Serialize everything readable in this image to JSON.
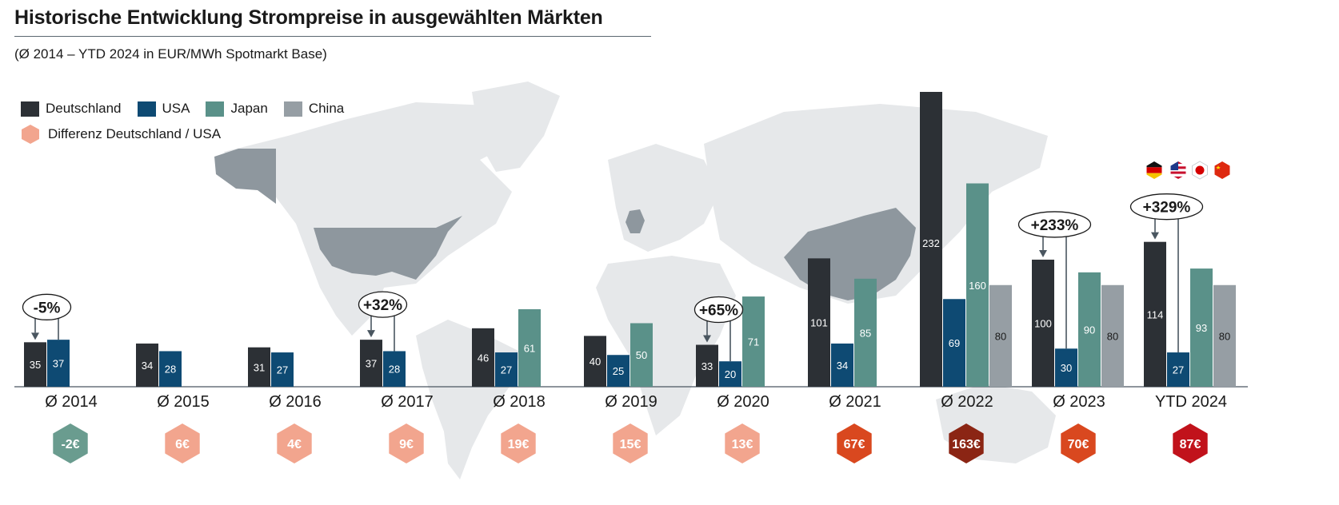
{
  "title": "Historische Entwicklung Strompreise in ausgewählten Märkten",
  "subtitle": "(Ø 2014 – YTD 2024 in EUR/MWh Spotmarkt Base)",
  "colors": {
    "Deutschland": "#2c3035",
    "USA": "#0e4a73",
    "Japan": "#5a9189",
    "China": "#969ea4",
    "map": "#e6e8ea",
    "map_highlight": "#8e979e"
  },
  "legend": {
    "series": [
      "Deutschland",
      "USA",
      "Japan",
      "China"
    ],
    "diff_label": "Differenz Deutschland / USA",
    "diff_color": "#f2a58e"
  },
  "flag_icons": [
    "germany-flag-icon",
    "usa-flag-icon",
    "japan-flag-icon",
    "china-flag-icon"
  ],
  "chart_data": {
    "type": "bar",
    "title": "Historische Entwicklung Strompreise in ausgewählten Märkten",
    "subtitle": "(Ø 2014 – YTD 2024 in EUR/MWh Spotmarkt Base)",
    "categories": [
      "Ø 2014",
      "Ø 2015",
      "Ø 2016",
      "Ø 2017",
      "Ø 2018",
      "Ø 2019",
      "Ø 2020",
      "Ø 2021",
      "Ø 2022",
      "Ø 2023",
      "YTD 2024"
    ],
    "series": [
      {
        "name": "Deutschland",
        "values": [
          35,
          34,
          31,
          37,
          46,
          40,
          33,
          101,
          232,
          100,
          114
        ]
      },
      {
        "name": "USA",
        "values": [
          37,
          28,
          27,
          28,
          27,
          25,
          20,
          34,
          69,
          30,
          27
        ]
      },
      {
        "name": "Japan",
        "values": [
          null,
          null,
          null,
          null,
          61,
          50,
          71,
          85,
          160,
          90,
          93
        ]
      },
      {
        "name": "China",
        "values": [
          null,
          null,
          null,
          null,
          null,
          null,
          null,
          null,
          80,
          80,
          80
        ]
      }
    ],
    "differences": [
      {
        "label": "-2€",
        "color": "#6a9c8f"
      },
      {
        "label": "6€",
        "color": "#f2a58e"
      },
      {
        "label": "4€",
        "color": "#f2a58e"
      },
      {
        "label": "9€",
        "color": "#f2a58e"
      },
      {
        "label": "19€",
        "color": "#f2a58e"
      },
      {
        "label": "15€",
        "color": "#f2a58e"
      },
      {
        "label": "13€",
        "color": "#f2a58e"
      },
      {
        "label": "67€",
        "color": "#d9481f"
      },
      {
        "label": "163€",
        "color": "#8b2514"
      },
      {
        "label": "70€",
        "color": "#d9481f"
      },
      {
        "label": "87€",
        "color": "#c1121b"
      }
    ],
    "callouts": [
      {
        "category": "Ø 2014",
        "label": "-5%"
      },
      {
        "category": "Ø 2017",
        "label": "+32%"
      },
      {
        "category": "Ø 2020",
        "label": "+65%"
      },
      {
        "category": "Ø 2023",
        "label": "+233%"
      },
      {
        "category": "YTD 2024",
        "label": "+329%"
      }
    ],
    "ylim": [
      0,
      232
    ],
    "grid": false,
    "legend_position": "top-left"
  }
}
